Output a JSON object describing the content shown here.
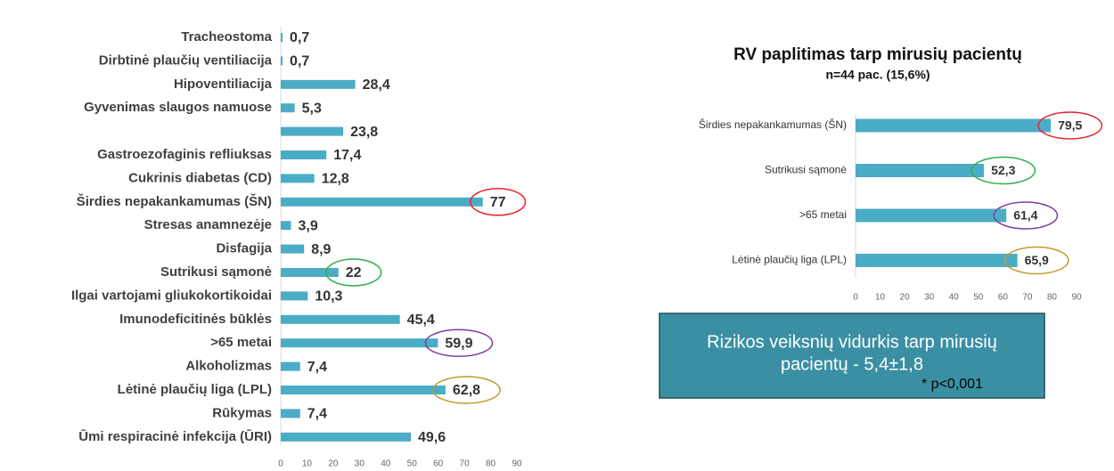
{
  "chart_data": [
    {
      "type": "hbar",
      "categories": [
        "Tracheostoma",
        "Dirbtinė plaučių ventiliacija",
        "Hipoventiliacija",
        "Gyvenimas slaugos namuose",
        null,
        "Gastroezofaginis refliuksas",
        "Cukrinis diabetas (CD)",
        "Širdies nepakankamumas (ŠN)",
        "Stresas anamnezėje",
        "Disfagija",
        "Sutrikusi sąmonė",
        "Ilgai vartojami gliukokortikoidai",
        "Imunodeficitinės būklės",
        ">65 metai",
        "Alkoholizmas",
        "Lėtinė plaučių liga (LPL)",
        "Rūkymas",
        "Ūmi respiracinė infekcija (ŪRI)"
      ],
      "values": [
        0.7,
        0.7,
        28.4,
        5.3,
        23.8,
        17.4,
        12.8,
        77,
        3.9,
        8.9,
        22,
        10.3,
        45.4,
        59.9,
        7.4,
        62.8,
        7.4,
        49.6
      ],
      "value_labels": [
        "0,7",
        "0,7",
        "28,4",
        "5,3",
        "23,8",
        "17,4",
        "12,8",
        "77",
        "3,9",
        "8,9",
        "22",
        "10,3",
        "45,4",
        "59,9",
        "7,4",
        "62,8",
        "7,4",
        "49,6"
      ],
      "label_rings": [
        null,
        null,
        null,
        null,
        null,
        null,
        null,
        "#e8262b",
        null,
        null,
        "#2fb04a",
        null,
        null,
        "#7b3fa0",
        null,
        "#c49a2c",
        null,
        null
      ],
      "color": "#4bacc6",
      "xlim": [
        0,
        90
      ],
      "xticks": [
        0,
        10,
        20,
        30,
        40,
        50,
        60,
        70,
        80,
        90
      ]
    },
    {
      "type": "hbar",
      "title": "RV paplitimas tarp mirusių pacientų",
      "subtitle": "n=44 pac. (15,6%)",
      "categories": [
        "Širdies nepakankamumas (ŠN)",
        "Sutrikusi sąmonė",
        ">65 metai",
        "Lėtinė plaučių liga (LPL)"
      ],
      "values": [
        79.5,
        52.3,
        61.4,
        65.9
      ],
      "value_labels": [
        "79,5",
        "52,3",
        "61,4",
        "65,9"
      ],
      "label_rings": [
        "#e8262b",
        "#2fb04a",
        "#7b3fa0",
        "#c49a2c"
      ],
      "color": "#4bacc6",
      "xlim": [
        0,
        90
      ],
      "xticks": [
        0,
        10,
        20,
        30,
        40,
        50,
        60,
        70,
        80,
        90
      ]
    }
  ],
  "note": {
    "text": "Rizikos veiksnių vidurkis tarp mirusių",
    "text2": "pacientų - 5,4±1,8",
    "footnote": "* p<0,001"
  }
}
